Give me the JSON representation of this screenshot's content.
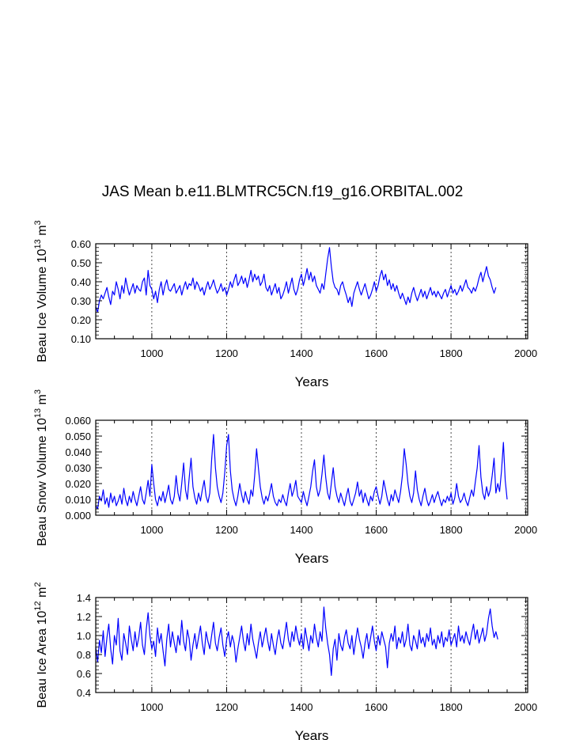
{
  "title": "JAS Mean b.e11.BLMTRC5CN.f19_g16.ORBITAL.002",
  "colors": {
    "series": "#0000ff",
    "axes": "#000000",
    "grid": "#000000"
  },
  "chart_data": [
    {
      "type": "line",
      "ylabel": {
        "main": "Beau Ice Volume 10",
        "exp": "13",
        "unit_base": " m",
        "unit_exp": "3"
      },
      "xlabel": "Years",
      "xlim": [
        850,
        2005
      ],
      "ylim": [
        0.1,
        0.6
      ],
      "xticks": [
        1000,
        1200,
        1400,
        1600,
        1800,
        2000
      ],
      "yticks": [
        0.1,
        0.2,
        0.3,
        0.4,
        0.5,
        0.6
      ],
      "ytick_labels": [
        "0.10",
        "0.20",
        "0.30",
        "0.40",
        "0.50",
        "0.60"
      ],
      "grid": "dashed vertical lines at major x ticks",
      "series": [
        {
          "x_start": 850,
          "x_step": 5,
          "values": [
            0.27,
            0.24,
            0.3,
            0.33,
            0.31,
            0.34,
            0.37,
            0.32,
            0.28,
            0.35,
            0.33,
            0.4,
            0.36,
            0.31,
            0.38,
            0.34,
            0.42,
            0.37,
            0.33,
            0.36,
            0.39,
            0.34,
            0.38,
            0.36,
            0.35,
            0.4,
            0.42,
            0.33,
            0.46,
            0.38,
            0.36,
            0.31,
            0.35,
            0.29,
            0.36,
            0.4,
            0.33,
            0.38,
            0.41,
            0.36,
            0.35,
            0.37,
            0.39,
            0.34,
            0.36,
            0.38,
            0.33,
            0.37,
            0.4,
            0.36,
            0.39,
            0.38,
            0.42,
            0.36,
            0.4,
            0.38,
            0.35,
            0.37,
            0.33,
            0.37,
            0.4,
            0.36,
            0.38,
            0.41,
            0.37,
            0.34,
            0.36,
            0.39,
            0.35,
            0.37,
            0.33,
            0.36,
            0.4,
            0.37,
            0.41,
            0.44,
            0.38,
            0.4,
            0.43,
            0.39,
            0.42,
            0.37,
            0.41,
            0.46,
            0.4,
            0.44,
            0.41,
            0.43,
            0.38,
            0.4,
            0.44,
            0.37,
            0.35,
            0.38,
            0.33,
            0.36,
            0.39,
            0.34,
            0.37,
            0.31,
            0.33,
            0.36,
            0.4,
            0.34,
            0.38,
            0.42,
            0.36,
            0.33,
            0.36,
            0.41,
            0.44,
            0.38,
            0.42,
            0.47,
            0.41,
            0.45,
            0.4,
            0.43,
            0.38,
            0.36,
            0.34,
            0.39,
            0.36,
            0.44,
            0.52,
            0.58,
            0.48,
            0.4,
            0.37,
            0.36,
            0.33,
            0.38,
            0.4,
            0.36,
            0.33,
            0.29,
            0.32,
            0.27,
            0.34,
            0.37,
            0.4,
            0.36,
            0.33,
            0.36,
            0.39,
            0.35,
            0.31,
            0.33,
            0.36,
            0.4,
            0.35,
            0.38,
            0.43,
            0.46,
            0.41,
            0.44,
            0.38,
            0.41,
            0.36,
            0.39,
            0.35,
            0.38,
            0.34,
            0.31,
            0.34,
            0.31,
            0.28,
            0.32,
            0.29,
            0.34,
            0.37,
            0.33,
            0.3,
            0.33,
            0.36,
            0.32,
            0.35,
            0.31,
            0.34,
            0.37,
            0.33,
            0.35,
            0.32,
            0.35,
            0.33,
            0.31,
            0.34,
            0.36,
            0.32,
            0.35,
            0.38,
            0.34,
            0.36,
            0.33,
            0.35,
            0.38,
            0.35,
            0.38,
            0.41,
            0.37,
            0.36,
            0.34,
            0.37,
            0.35,
            0.38,
            0.42,
            0.45,
            0.4,
            0.44,
            0.48,
            0.43,
            0.41,
            0.37,
            0.34,
            0.37
          ]
        }
      ]
    },
    {
      "type": "line",
      "ylabel": {
        "main": "Beau Snow Volume 10",
        "exp": "13",
        "unit_base": " m",
        "unit_exp": "3"
      },
      "xlabel": "Years",
      "xlim": [
        850,
        2005
      ],
      "ylim": [
        0.0,
        0.06
      ],
      "xticks": [
        1000,
        1200,
        1400,
        1600,
        1800,
        2000
      ],
      "yticks": [
        0.0,
        0.01,
        0.02,
        0.03,
        0.04,
        0.05,
        0.06
      ],
      "ytick_labels": [
        "0.000",
        "0.010",
        "0.020",
        "0.030",
        "0.040",
        "0.050",
        "0.060"
      ],
      "grid": "dashed vertical lines at major x ticks",
      "series": [
        {
          "x_start": 850,
          "x_step": 5,
          "values": [
            0.006,
            0.004,
            0.012,
            0.009,
            0.016,
            0.007,
            0.011,
            0.005,
            0.014,
            0.008,
            0.012,
            0.006,
            0.009,
            0.013,
            0.007,
            0.017,
            0.01,
            0.006,
            0.012,
            0.008,
            0.015,
            0.01,
            0.006,
            0.012,
            0.018,
            0.01,
            0.007,
            0.014,
            0.022,
            0.012,
            0.032,
            0.02,
            0.01,
            0.006,
            0.012,
            0.009,
            0.015,
            0.008,
            0.013,
            0.019,
            0.01,
            0.007,
            0.012,
            0.025,
            0.014,
            0.009,
            0.02,
            0.033,
            0.016,
            0.01,
            0.024,
            0.036,
            0.018,
            0.011,
            0.007,
            0.014,
            0.009,
            0.016,
            0.022,
            0.012,
            0.008,
            0.014,
            0.035,
            0.051,
            0.03,
            0.018,
            0.012,
            0.008,
            0.014,
            0.027,
            0.044,
            0.051,
            0.028,
            0.016,
            0.01,
            0.006,
            0.012,
            0.02,
            0.013,
            0.008,
            0.015,
            0.01,
            0.007,
            0.016,
            0.012,
            0.025,
            0.042,
            0.03,
            0.018,
            0.011,
            0.007,
            0.012,
            0.009,
            0.014,
            0.02,
            0.012,
            0.008,
            0.006,
            0.01,
            0.008,
            0.013,
            0.009,
            0.006,
            0.014,
            0.02,
            0.012,
            0.016,
            0.022,
            0.012,
            0.01,
            0.008,
            0.015,
            0.01,
            0.006,
            0.012,
            0.018,
            0.028,
            0.035,
            0.018,
            0.012,
            0.016,
            0.026,
            0.038,
            0.024,
            0.014,
            0.01,
            0.02,
            0.03,
            0.018,
            0.012,
            0.008,
            0.014,
            0.01,
            0.006,
            0.012,
            0.017,
            0.009,
            0.006,
            0.01,
            0.014,
            0.021,
            0.012,
            0.016,
            0.008,
            0.014,
            0.01,
            0.006,
            0.012,
            0.009,
            0.015,
            0.018,
            0.012,
            0.007,
            0.012,
            0.022,
            0.016,
            0.01,
            0.006,
            0.013,
            0.009,
            0.016,
            0.012,
            0.008,
            0.015,
            0.025,
            0.042,
            0.032,
            0.02,
            0.012,
            0.008,
            0.014,
            0.028,
            0.016,
            0.01,
            0.006,
            0.012,
            0.017,
            0.01,
            0.006,
            0.009,
            0.013,
            0.008,
            0.012,
            0.015,
            0.01,
            0.006,
            0.01,
            0.008,
            0.012,
            0.009,
            0.014,
            0.007,
            0.011,
            0.02,
            0.012,
            0.008,
            0.01,
            0.014,
            0.009,
            0.006,
            0.011,
            0.016,
            0.012,
            0.021,
            0.03,
            0.044,
            0.024,
            0.014,
            0.01,
            0.018,
            0.012,
            0.016,
            0.025,
            0.036,
            0.014,
            0.02,
            0.015,
            0.028,
            0.046,
            0.022,
            0.01
          ]
        }
      ]
    },
    {
      "type": "line",
      "ylabel": {
        "main": "Beau Ice Area 10",
        "exp": "12",
        "unit_base": " m",
        "unit_exp": "2"
      },
      "xlabel": "Years",
      "xlim": [
        850,
        2005
      ],
      "ylim": [
        0.4,
        1.4
      ],
      "xticks": [
        1000,
        1200,
        1400,
        1600,
        1800,
        2000
      ],
      "yticks": [
        0.4,
        0.6,
        0.8,
        1.0,
        1.2,
        1.4
      ],
      "ytick_labels": [
        "0.4",
        "0.6",
        "0.8",
        "1.0",
        "1.2",
        "1.4"
      ],
      "grid": "dashed vertical lines at major x ticks",
      "series": [
        {
          "x_start": 850,
          "x_step": 5,
          "values": [
            0.88,
            0.72,
            0.95,
            0.82,
            1.05,
            0.78,
            0.98,
            1.12,
            0.86,
            0.7,
            1.0,
            0.9,
            1.18,
            0.84,
            0.74,
            1.02,
            0.92,
            0.8,
            1.1,
            0.96,
            0.84,
            1.04,
            0.88,
            0.98,
            1.14,
            0.9,
            0.8,
            1.06,
            1.24,
            1.0,
            0.86,
            0.94,
            0.78,
            1.08,
            0.92,
            1.02,
            0.84,
            0.68,
            0.96,
            1.12,
            0.88,
            1.04,
            0.92,
            0.82,
            1.0,
            0.9,
            1.16,
            0.94,
            0.84,
            1.06,
            0.96,
            0.74,
            0.9,
            1.02,
            0.86,
            0.98,
            1.1,
            0.92,
            0.8,
            1.04,
            0.94,
            0.86,
            1.0,
            1.14,
            0.92,
            0.84,
            0.98,
            1.08,
            0.9,
            0.78,
            0.96,
            1.04,
            0.88,
            1.0,
            0.92,
            0.72,
            0.86,
            0.98,
            1.1,
            0.94,
            0.84,
            1.02,
            0.9,
            1.12,
            0.96,
            0.86,
            0.76,
            0.92,
            1.04,
            0.88,
            0.98,
            1.08,
            0.94,
            0.84,
            1.02,
            0.9,
            0.8,
            0.96,
            1.06,
            0.92,
            0.86,
            1.0,
            1.14,
            0.96,
            0.88,
            1.04,
            0.94,
            1.1,
            0.98,
            0.9,
            1.02,
            0.86,
            1.08,
            0.96,
            0.84,
            1.0,
            0.92,
            1.12,
            0.98,
            0.88,
            1.04,
            0.94,
            1.3,
            1.08,
            0.92,
            0.8,
            0.58,
            0.86,
            0.96,
            0.74,
            1.02,
            0.9,
            0.84,
            0.98,
            1.06,
            0.92,
            0.86,
            1.0,
            0.8,
            0.94,
            1.08,
            0.96,
            0.88,
            0.76,
            0.92,
            1.02,
            0.86,
            0.98,
            1.1,
            0.94,
            0.84,
            1.0,
            0.9,
            1.04,
            0.96,
            0.88,
            0.66,
            0.92,
            1.02,
            0.94,
            1.1,
            0.86,
            0.98,
            0.92,
            1.04,
            0.88,
            0.96,
            1.12,
            0.9,
            0.84,
            1.0,
            0.94,
            0.86,
            1.06,
            0.92,
            0.98,
            0.88,
            1.02,
            0.94,
            1.08,
            0.9,
            0.96,
            0.86,
            1.0,
            0.92,
            1.04,
            0.88,
            0.98,
            0.94,
            1.06,
            0.9,
            0.96,
            1.02,
            0.88,
            1.1,
            0.94,
            1.0,
            0.92,
            1.04,
            0.96,
            0.9,
            1.02,
            1.12,
            0.96,
            1.06,
            0.92,
            1.0,
            1.08,
            0.94,
            1.02,
            1.18,
            1.28,
            1.1,
            0.98,
            1.04,
            0.96
          ]
        }
      ]
    }
  ]
}
